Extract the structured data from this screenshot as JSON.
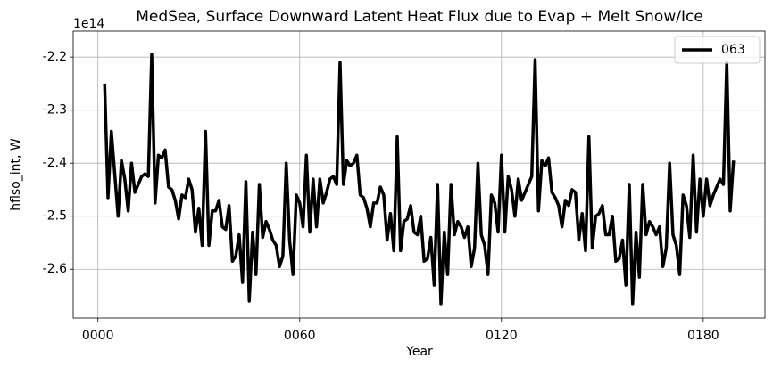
{
  "chart_data": {
    "type": "line",
    "title": "MedSea, Surface Downward Latent Heat Flux due to Evap + Melt Snow/Ice",
    "x_label": "Year",
    "y_label": "hflso_int, W",
    "y_offset_label": "1e14",
    "x": [
      2,
      3,
      4,
      5,
      6,
      7,
      8,
      9,
      10,
      11,
      12,
      13,
      14,
      15,
      16,
      17,
      18,
      19,
      20,
      21,
      22,
      23,
      24,
      25,
      26,
      27,
      28,
      29,
      30,
      31,
      32,
      33,
      34,
      35,
      36,
      37,
      38,
      39,
      40,
      41,
      42,
      43,
      44,
      45,
      46,
      47,
      48,
      49,
      50,
      51,
      52,
      53,
      54,
      55,
      56,
      57,
      58,
      59,
      60,
      61,
      62,
      63,
      64,
      65,
      66,
      67,
      68,
      69,
      70,
      71,
      72,
      73,
      74,
      75,
      76,
      77,
      78,
      79,
      80,
      81,
      82,
      83,
      84,
      85,
      86,
      87,
      88,
      89,
      90,
      91,
      92,
      93,
      94,
      95,
      96,
      97,
      98,
      99,
      100,
      101,
      102,
      103,
      104,
      105,
      106,
      107,
      108,
      109,
      110,
      111,
      112,
      113,
      114,
      115,
      116,
      117,
      118,
      119,
      120,
      121,
      122,
      123,
      124,
      125,
      126,
      127,
      128,
      129,
      130,
      131,
      132,
      133,
      134,
      135,
      136,
      137,
      138,
      139,
      140,
      141,
      142,
      143,
      144,
      145,
      146,
      147,
      148,
      149,
      150,
      151,
      152,
      153,
      154,
      155,
      156,
      157,
      158,
      159,
      160,
      161,
      162,
      163,
      164,
      165,
      166,
      167,
      168,
      169,
      170,
      171,
      172,
      173,
      174,
      175,
      176,
      177,
      178,
      179,
      180,
      181,
      182,
      183,
      184,
      185,
      186,
      187,
      188,
      189
    ],
    "series": [
      {
        "name": "063",
        "color": "#000000",
        "values": [
          -2.25,
          -2.465,
          -2.34,
          -2.42,
          -2.5,
          -2.395,
          -2.43,
          -2.49,
          -2.4,
          -2.455,
          -2.44,
          -2.425,
          -2.42,
          -2.425,
          -2.195,
          -2.475,
          -2.385,
          -2.39,
          -2.375,
          -2.445,
          -2.45,
          -2.47,
          -2.505,
          -2.46,
          -2.465,
          -2.43,
          -2.45,
          -2.53,
          -2.485,
          -2.555,
          -2.34,
          -2.555,
          -2.49,
          -2.49,
          -2.47,
          -2.52,
          -2.525,
          -2.48,
          -2.585,
          -2.575,
          -2.535,
          -2.625,
          -2.435,
          -2.66,
          -2.53,
          -2.61,
          -2.44,
          -2.54,
          -2.51,
          -2.525,
          -2.545,
          -2.555,
          -2.595,
          -2.575,
          -2.4,
          -2.545,
          -2.61,
          -2.46,
          -2.475,
          -2.52,
          -2.385,
          -2.53,
          -2.43,
          -2.52,
          -2.43,
          -2.475,
          -2.455,
          -2.43,
          -2.425,
          -2.44,
          -2.21,
          -2.44,
          -2.395,
          -2.405,
          -2.4,
          -2.385,
          -2.46,
          -2.465,
          -2.485,
          -2.52,
          -2.475,
          -2.475,
          -2.445,
          -2.46,
          -2.545,
          -2.495,
          -2.565,
          -2.35,
          -2.565,
          -2.51,
          -2.505,
          -2.48,
          -2.53,
          -2.535,
          -2.5,
          -2.585,
          -2.58,
          -2.54,
          -2.63,
          -2.44,
          -2.665,
          -2.53,
          -2.61,
          -2.44,
          -2.535,
          -2.51,
          -2.52,
          -2.54,
          -2.52,
          -2.595,
          -2.56,
          -2.4,
          -2.535,
          -2.555,
          -2.61,
          -2.46,
          -2.475,
          -2.53,
          -2.385,
          -2.53,
          -2.425,
          -2.45,
          -2.5,
          -2.43,
          -2.47,
          -2.455,
          -2.44,
          -2.425,
          -2.205,
          -2.49,
          -2.395,
          -2.405,
          -2.39,
          -2.455,
          -2.465,
          -2.48,
          -2.52,
          -2.47,
          -2.48,
          -2.45,
          -2.455,
          -2.545,
          -2.495,
          -2.565,
          -2.35,
          -2.56,
          -2.5,
          -2.495,
          -2.48,
          -2.535,
          -2.535,
          -2.5,
          -2.585,
          -2.58,
          -2.545,
          -2.63,
          -2.44,
          -2.665,
          -2.53,
          -2.615,
          -2.44,
          -2.535,
          -2.51,
          -2.52,
          -2.535,
          -2.52,
          -2.595,
          -2.56,
          -2.4,
          -2.535,
          -2.555,
          -2.61,
          -2.46,
          -2.48,
          -2.54,
          -2.385,
          -2.53,
          -2.43,
          -2.5,
          -2.43,
          -2.48,
          -2.46,
          -2.445,
          -2.43,
          -2.44,
          -2.21,
          -2.49,
          -2.395
        ]
      }
    ],
    "xlim": [
      -7.35,
      198.35
    ],
    "ylim": [
      -2.692,
      -2.151
    ],
    "xticks": [
      {
        "value": 0,
        "label": "0000"
      },
      {
        "value": 60,
        "label": "0060"
      },
      {
        "value": 120,
        "label": "0120"
      },
      {
        "value": 180,
        "label": "0180"
      }
    ],
    "yticks": [
      -2.6,
      -2.5,
      -2.4,
      -2.3,
      -2.2
    ],
    "grid": true,
    "legend": "upper right",
    "line_width": 3.5
  }
}
